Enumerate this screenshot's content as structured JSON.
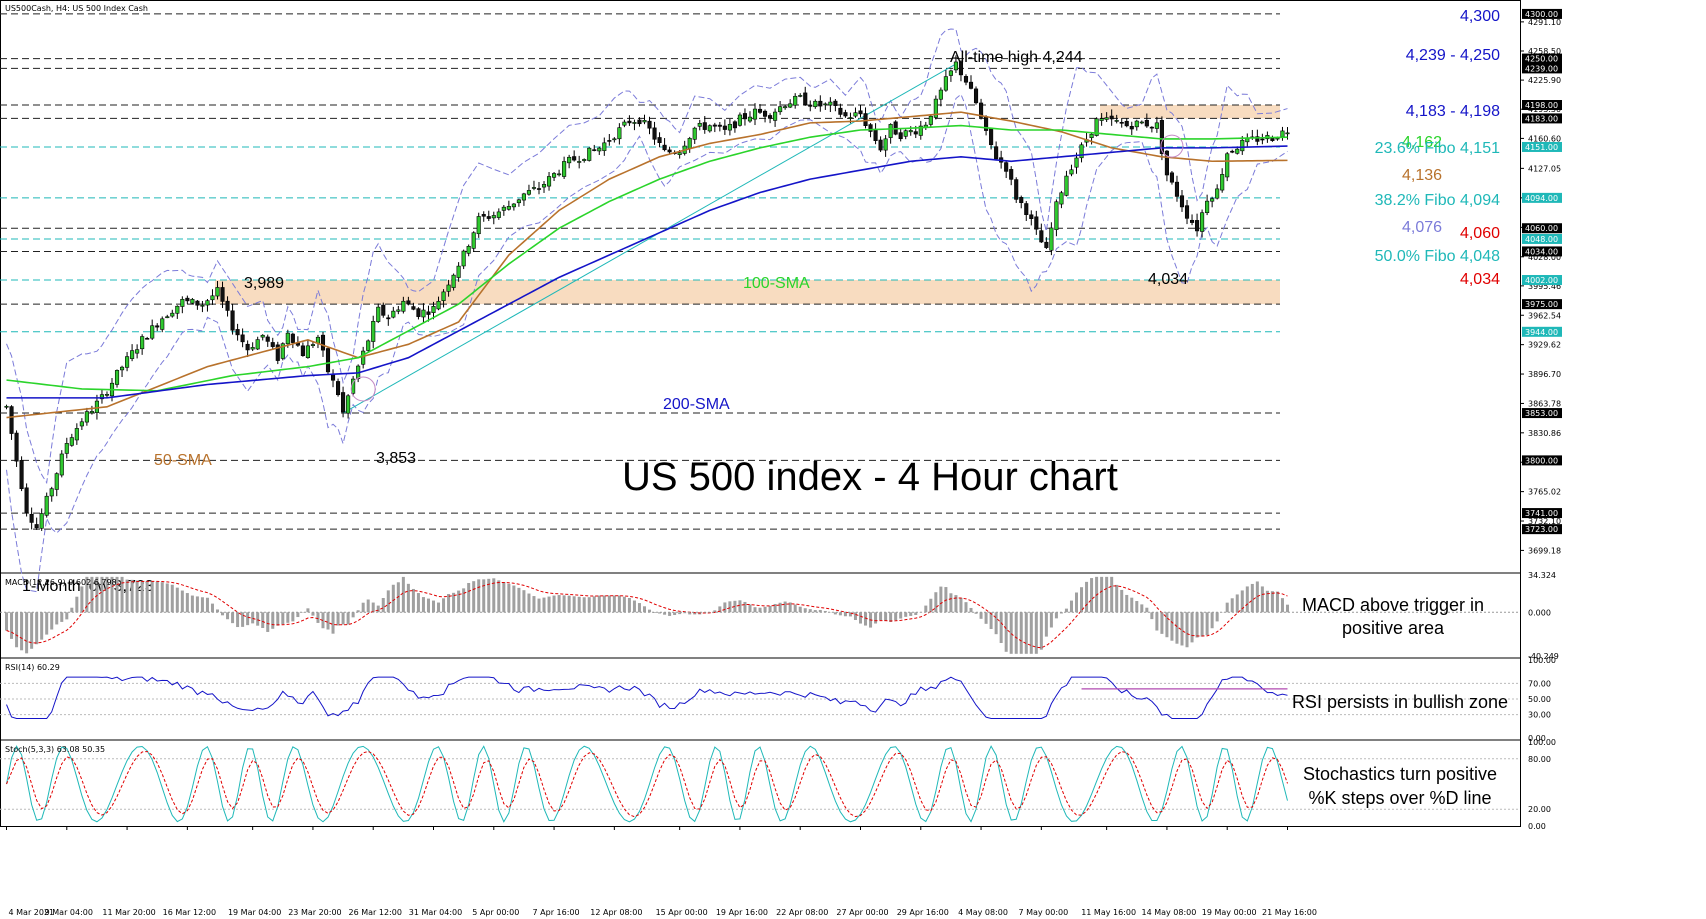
{
  "chart_data": {
    "type": "candlestick",
    "title": "US 500 index - 4 Hour chart",
    "symbol_label": "US500Cash, H4:  US 500 Index Cash",
    "ylim": [
      3675,
      4310
    ],
    "price_ticks": [
      "4291.10",
      "4258.50",
      "4225.90",
      "4193.30",
      "4160.60",
      "4127.05",
      "4094.00",
      "4061.00",
      "4028.00",
      "3995.46",
      "3962.54",
      "3929.62",
      "3896.70",
      "3863.78",
      "3830.86",
      "3797.94",
      "3765.02",
      "3732.10",
      "3699.18"
    ],
    "x_labels": [
      "4 Mar 2021",
      "9 Mar 04:00",
      "11 Mar 20:00",
      "16 Mar 12:00",
      "19 Mar 04:00",
      "23 Mar 20:00",
      "26 Mar 12:00",
      "31 Mar 04:00",
      "5 Apr 00:00",
      "7 Apr 16:00",
      "12 Apr 08:00",
      "15 Apr 00:00",
      "19 Apr 16:00",
      "22 Apr 08:00",
      "27 Apr 00:00",
      "29 Apr 16:00",
      "4 May 08:00",
      "7 May 00:00",
      "11 May 16:00",
      "14 May 08:00",
      "19 May 00:00",
      "21 May 16:00"
    ],
    "price_path": [
      [
        0,
        3860
      ],
      [
        2,
        3800
      ],
      [
        4,
        3745
      ],
      [
        6,
        3725
      ],
      [
        9,
        3770
      ],
      [
        12,
        3820
      ],
      [
        15,
        3845
      ],
      [
        19,
        3870
      ],
      [
        23,
        3905
      ],
      [
        27,
        3935
      ],
      [
        31,
        3960
      ],
      [
        35,
        3978
      ],
      [
        39,
        3975
      ],
      [
        42,
        3989
      ],
      [
        45,
        3950
      ],
      [
        48,
        3925
      ],
      [
        51,
        3940
      ],
      [
        54,
        3915
      ],
      [
        56,
        3945
      ],
      [
        59,
        3920
      ],
      [
        62,
        3938
      ],
      [
        64,
        3900
      ],
      [
        66,
        3875
      ],
      [
        67,
        3853
      ],
      [
        69,
        3890
      ],
      [
        72,
        3935
      ],
      [
        74,
        3968
      ],
      [
        76,
        3960
      ],
      [
        79,
        3978
      ],
      [
        82,
        3965
      ],
      [
        85,
        3970
      ],
      [
        88,
        4000
      ],
      [
        91,
        4030
      ],
      [
        94,
        4070
      ],
      [
        97,
        4075
      ],
      [
        100,
        4085
      ],
      [
        103,
        4098
      ],
      [
        106,
        4105
      ],
      [
        109,
        4120
      ],
      [
        112,
        4135
      ],
      [
        115,
        4142
      ],
      [
        118,
        4150
      ],
      [
        121,
        4165
      ],
      [
        124,
        4180
      ],
      [
        126,
        4182
      ],
      [
        128,
        4170
      ],
      [
        131,
        4145
      ],
      [
        134,
        4148
      ],
      [
        137,
        4172
      ],
      [
        140,
        4175
      ],
      [
        143,
        4168
      ],
      [
        146,
        4182
      ],
      [
        149,
        4190
      ],
      [
        152,
        4188
      ],
      [
        155,
        4200
      ],
      [
        158,
        4205
      ],
      [
        161,
        4198
      ],
      [
        164,
        4197
      ],
      [
        167,
        4185
      ],
      [
        170,
        4188
      ],
      [
        172,
        4168
      ],
      [
        174,
        4150
      ],
      [
        176,
        4172
      ],
      [
        178,
        4165
      ],
      [
        181,
        4170
      ],
      [
        183,
        4178
      ],
      [
        185,
        4200
      ],
      [
        187,
        4225
      ],
      [
        189,
        4244
      ],
      [
        191,
        4225
      ],
      [
        193,
        4200
      ],
      [
        195,
        4165
      ],
      [
        197,
        4140
      ],
      [
        199,
        4128
      ],
      [
        201,
        4095
      ],
      [
        203,
        4080
      ],
      [
        205,
        4055
      ],
      [
        207,
        4034
      ],
      [
        209,
        4085
      ],
      [
        211,
        4120
      ],
      [
        214,
        4150
      ],
      [
        217,
        4180
      ],
      [
        220,
        4180
      ],
      [
        223,
        4175
      ],
      [
        226,
        4178
      ],
      [
        229,
        4175
      ],
      [
        231,
        4120
      ],
      [
        233,
        4098
      ],
      [
        235,
        4075
      ],
      [
        237,
        4060
      ],
      [
        239,
        4094
      ],
      [
        241,
        4102
      ],
      [
        243,
        4145
      ],
      [
        246,
        4155
      ],
      [
        249,
        4160
      ],
      [
        252,
        4162
      ],
      [
        255,
        4170
      ]
    ],
    "series": [
      {
        "name": "50-SMA",
        "color": "#b8722c",
        "values": [
          [
            0,
            3848
          ],
          [
            20,
            3860
          ],
          [
            40,
            3905
          ],
          [
            60,
            3935
          ],
          [
            70,
            3915
          ],
          [
            80,
            3930
          ],
          [
            90,
            3955
          ],
          [
            100,
            4030
          ],
          [
            110,
            4080
          ],
          [
            120,
            4115
          ],
          [
            130,
            4140
          ],
          [
            140,
            4155
          ],
          [
            150,
            4165
          ],
          [
            160,
            4178
          ],
          [
            170,
            4180
          ],
          [
            180,
            4185
          ],
          [
            190,
            4190
          ],
          [
            200,
            4180
          ],
          [
            210,
            4168
          ],
          [
            220,
            4150
          ],
          [
            230,
            4140
          ],
          [
            240,
            4135
          ],
          [
            255,
            4136
          ]
        ]
      },
      {
        "name": "100-SMA",
        "color": "#2bd42b",
        "values": [
          [
            0,
            3890
          ],
          [
            15,
            3880
          ],
          [
            30,
            3878
          ],
          [
            45,
            3895
          ],
          [
            60,
            3905
          ],
          [
            70,
            3915
          ],
          [
            80,
            3945
          ],
          [
            90,
            3975
          ],
          [
            100,
            4020
          ],
          [
            110,
            4060
          ],
          [
            120,
            4090
          ],
          [
            130,
            4115
          ],
          [
            140,
            4135
          ],
          [
            150,
            4150
          ],
          [
            160,
            4162
          ],
          [
            170,
            4170
          ],
          [
            180,
            4172
          ],
          [
            190,
            4175
          ],
          [
            200,
            4170
          ],
          [
            210,
            4170
          ],
          [
            220,
            4165
          ],
          [
            230,
            4160
          ],
          [
            240,
            4160
          ],
          [
            255,
            4162
          ]
        ]
      },
      {
        "name": "200-SMA",
        "color": "#1414c8",
        "values": [
          [
            0,
            3870
          ],
          [
            20,
            3870
          ],
          [
            40,
            3885
          ],
          [
            60,
            3895
          ],
          [
            70,
            3898
          ],
          [
            80,
            3915
          ],
          [
            90,
            3945
          ],
          [
            100,
            3975
          ],
          [
            110,
            4005
          ],
          [
            120,
            4030
          ],
          [
            130,
            4055
          ],
          [
            140,
            4080
          ],
          [
            150,
            4100
          ],
          [
            160,
            4115
          ],
          [
            170,
            4125
          ],
          [
            180,
            4135
          ],
          [
            190,
            4140
          ],
          [
            200,
            4135
          ],
          [
            210,
            4140
          ],
          [
            220,
            4145
          ],
          [
            230,
            4150
          ],
          [
            240,
            4150
          ],
          [
            255,
            4152
          ]
        ]
      }
    ],
    "support_resistance": [
      4300,
      4250,
      4239,
      4198,
      4183,
      4060,
      4034,
      3975,
      3853,
      3800,
      3741,
      3723
    ],
    "fibonacci": [
      {
        "label": "23.6% Fibo 4,151",
        "value": 4151
      },
      {
        "label": "38.2% Fibo 4,094",
        "value": 4094
      },
      {
        "label": "50.0% Fibo 4,048",
        "value": 4048
      },
      {
        "level": 4002
      },
      {
        "level": 3944
      }
    ],
    "zones": [
      [
        4183,
        4198
      ],
      [
        3975,
        4002
      ]
    ],
    "annotations": [
      {
        "text": "All-time high 4,244"
      },
      {
        "text": "3,989"
      },
      {
        "text": "3,853"
      },
      {
        "text": "1-Month low 3,723"
      },
      {
        "text": "4,034"
      },
      {
        "text": "100-SMA"
      },
      {
        "text": "200-SMA"
      },
      {
        "text": "50-SMA"
      }
    ],
    "right_labels": [
      {
        "text": "4,300",
        "color": "#1414c8"
      },
      {
        "text": "4,239 - 4,250",
        "color": "#1414c8"
      },
      {
        "text": "4,183 - 4,198",
        "color": "#1414c8"
      },
      {
        "text": "4,162",
        "color": "#2bd42b"
      },
      {
        "text": "23.6% Fibo 4,151",
        "color": "#1fb8b8"
      },
      {
        "text": "4,136",
        "color": "#b8722c"
      },
      {
        "text": "38.2% Fibo 4,094",
        "color": "#1fb8b8"
      },
      {
        "text": "4,076",
        "color": "#7b7bd9"
      },
      {
        "text": "4,060",
        "color": "#e00000"
      },
      {
        "text": "50.0% Fibo 4,048",
        "color": "#1fb8b8"
      },
      {
        "text": "4,034",
        "color": "#e00000"
      }
    ],
    "price_tags": [
      "4300.00",
      "4250.00",
      "4239.00",
      "4198.00",
      "4183.00",
      "4151.00",
      "4094.00",
      "4060.00",
      "4048.00",
      "4034.00",
      "4002.00",
      "3975.00",
      "3944.00",
      "3853.00",
      "3800.00",
      "3741.00",
      "3723.00"
    ],
    "macd": {
      "label": "MACD(12,26,9) 9.602 6.798",
      "ylim": [
        -40.249,
        34.324
      ],
      "ticks": [
        "34.324",
        "0.000",
        "-40.249"
      ],
      "note_lines": [
        "MACD above trigger in",
        "positive area"
      ]
    },
    "rsi": {
      "label": "RSI(14) 60.29",
      "ylim": [
        0,
        100
      ],
      "ticks": [
        "100.00",
        "70.00",
        "50.00",
        "30.00",
        "0.00"
      ],
      "note": "RSI persists in bullish zone"
    },
    "stoch": {
      "label": "Stoch(5,3,3) 63.08 50.35",
      "ylim": [
        0,
        100
      ],
      "ticks": [
        "100.00",
        "80.00",
        "20.00",
        "0.00"
      ],
      "note_lines": [
        "Stochastics turn positive",
        "%K steps over %D line"
      ]
    }
  }
}
